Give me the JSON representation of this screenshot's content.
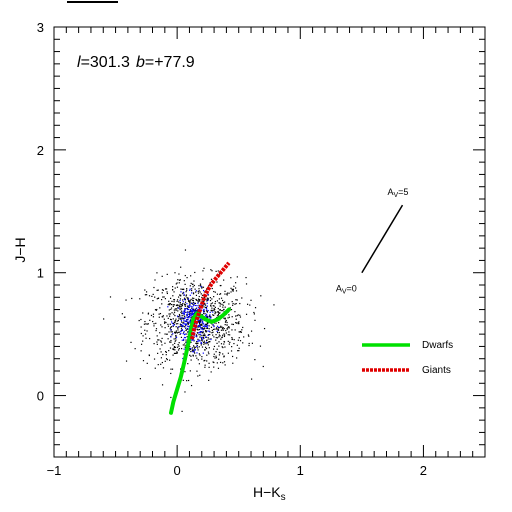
{
  "chart_data": {
    "type": "scatter",
    "title": "",
    "xlabel": "H−K",
    "xlabel_sub": "s",
    "ylabel": "J−H",
    "xlim": [
      -1,
      2.5
    ],
    "ylim": [
      -0.5,
      3
    ],
    "x_ticks": [
      -1,
      0,
      1,
      2
    ],
    "x_tick_labels": [
      "−1",
      "0",
      "1",
      "2"
    ],
    "y_ticks": [
      0,
      1,
      2,
      3
    ],
    "y_tick_labels": [
      "0",
      "1",
      "2",
      "3"
    ],
    "annotation": {
      "l_label": "l",
      "l_value": "=301.3",
      "b_label": "b",
      "b_value": "=+77.9"
    },
    "extinction_vector": {
      "start": [
        1.5,
        1.0
      ],
      "end": [
        1.83,
        1.55
      ],
      "start_label": "A",
      "start_label_sub": "V",
      "start_label_value": "=0",
      "end_label": "A",
      "end_label_sub": "V",
      "end_label_value": "=5"
    },
    "series": [
      {
        "name": "Dwarfs",
        "type": "line",
        "color": "#00e000",
        "points": [
          [
            -0.05,
            -0.14
          ],
          [
            -0.03,
            -0.05
          ],
          [
            0.0,
            0.05
          ],
          [
            0.03,
            0.15
          ],
          [
            0.06,
            0.28
          ],
          [
            0.09,
            0.42
          ],
          [
            0.11,
            0.53
          ],
          [
            0.13,
            0.62
          ],
          [
            0.16,
            0.67
          ],
          [
            0.19,
            0.65
          ],
          [
            0.23,
            0.62
          ],
          [
            0.28,
            0.6
          ],
          [
            0.33,
            0.62
          ],
          [
            0.38,
            0.66
          ],
          [
            0.42,
            0.7
          ]
        ]
      },
      {
        "name": "Giants",
        "type": "line",
        "color": "#e00000",
        "points": [
          [
            0.12,
            0.46
          ],
          [
            0.14,
            0.55
          ],
          [
            0.16,
            0.62
          ],
          [
            0.18,
            0.68
          ],
          [
            0.2,
            0.74
          ],
          [
            0.22,
            0.8
          ],
          [
            0.25,
            0.86
          ],
          [
            0.28,
            0.91
          ],
          [
            0.32,
            0.96
          ],
          [
            0.37,
            1.02
          ],
          [
            0.42,
            1.08
          ]
        ]
      },
      {
        "name": "",
        "type": "scatter",
        "color": "#000000",
        "cloud_center": [
          0.15,
          0.6
        ],
        "cloud_spread": [
          0.2,
          0.18
        ],
        "n_points": 1100
      },
      {
        "name": "",
        "type": "scatter",
        "color": "#0000ff",
        "cloud_center": [
          0.13,
          0.6
        ],
        "cloud_spread": [
          0.07,
          0.1
        ],
        "n_points": 330
      }
    ],
    "legend": {
      "placement": "lower-right",
      "entries": [
        {
          "label": "Dwarfs",
          "color": "#00e000",
          "style": "solid"
        },
        {
          "label": "Giants",
          "color": "#e00000",
          "style": "dashed"
        }
      ]
    },
    "grid": false
  }
}
